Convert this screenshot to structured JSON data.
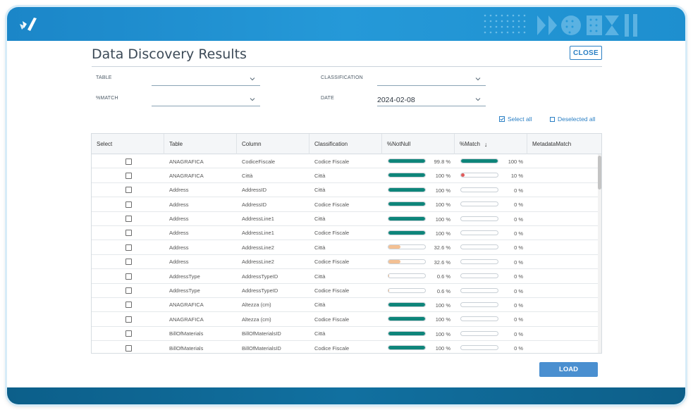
{
  "header": {
    "logo": "brand-logo",
    "decoration": "dot-pattern"
  },
  "dialog": {
    "title": "Data Discovery Results",
    "close_label": "CLOSE",
    "load_label": "LOAD"
  },
  "filters": {
    "table": {
      "label": "TABLE",
      "value": ""
    },
    "classification": {
      "label": "CLASSIFICATION",
      "value": ""
    },
    "match": {
      "label": "%MATCH",
      "value": ""
    },
    "date": {
      "label": "DATE",
      "value": "2024-02-08"
    }
  },
  "selection": {
    "select_all": "Select all",
    "deselect_all": "Deselected all"
  },
  "grid": {
    "columns": [
      "Select",
      "Table",
      "Column",
      "Classification",
      "%NotNull",
      "%Match",
      "MetadataMatch"
    ],
    "sort_indicator": "↓",
    "rows": [
      {
        "table": "ANAGRAFICA",
        "column": "CodiceFiscale",
        "classification": "Codice Fiscale",
        "notnull": 99.8,
        "notnull_label": "99.8 %",
        "match": 100,
        "match_label": "100 %"
      },
      {
        "table": "ANAGRAFICA",
        "column": "Città",
        "classification": "Città",
        "notnull": 100,
        "notnull_label": "100 %",
        "match": 10,
        "match_label": "10 %"
      },
      {
        "table": "Address",
        "column": "AddressID",
        "classification": "Città",
        "notnull": 100,
        "notnull_label": "100 %",
        "match": 0,
        "match_label": "0 %"
      },
      {
        "table": "Address",
        "column": "AddressID",
        "classification": "Codice Fiscale",
        "notnull": 100,
        "notnull_label": "100 %",
        "match": 0,
        "match_label": "0 %"
      },
      {
        "table": "Address",
        "column": "AddressLine1",
        "classification": "Città",
        "notnull": 100,
        "notnull_label": "100 %",
        "match": 0,
        "match_label": "0 %"
      },
      {
        "table": "Address",
        "column": "AddressLine1",
        "classification": "Codice Fiscale",
        "notnull": 100,
        "notnull_label": "100 %",
        "match": 0,
        "match_label": "0 %"
      },
      {
        "table": "Address",
        "column": "AddressLine2",
        "classification": "Città",
        "notnull": 32.6,
        "notnull_label": "32.6 %",
        "match": 0,
        "match_label": "0 %"
      },
      {
        "table": "Address",
        "column": "AddressLine2",
        "classification": "Codice Fiscale",
        "notnull": 32.6,
        "notnull_label": "32.6 %",
        "match": 0,
        "match_label": "0 %"
      },
      {
        "table": "AddressType",
        "column": "AddressTypeID",
        "classification": "Città",
        "notnull": 0.6,
        "notnull_label": "0.6 %",
        "match": 0,
        "match_label": "0 %"
      },
      {
        "table": "AddressType",
        "column": "AddressTypeID",
        "classification": "Codice Fiscale",
        "notnull": 0.6,
        "notnull_label": "0.6 %",
        "match": 0,
        "match_label": "0 %"
      },
      {
        "table": "ANAGRAFICA",
        "column": "Altezza (cm)",
        "classification": "Città",
        "notnull": 100,
        "notnull_label": "100 %",
        "match": 0,
        "match_label": "0 %"
      },
      {
        "table": "ANAGRAFICA",
        "column": "Altezza (cm)",
        "classification": "Codice Fiscale",
        "notnull": 100,
        "notnull_label": "100 %",
        "match": 0,
        "match_label": "0 %"
      },
      {
        "table": "BillOfMaterials",
        "column": "BillOfMaterialsID",
        "classification": "Città",
        "notnull": 100,
        "notnull_label": "100 %",
        "match": 0,
        "match_label": "0 %"
      },
      {
        "table": "BillOfMaterials",
        "column": "BillOfMaterialsID",
        "classification": "Codice Fiscale",
        "notnull": 100,
        "notnull_label": "100 %",
        "match": 0,
        "match_label": "0 %"
      }
    ]
  },
  "colors": {
    "high": "#0e857a",
    "low_red": "#e05a5a",
    "mid_orange": "#f3c093",
    "accent": "#2a7fc4"
  }
}
